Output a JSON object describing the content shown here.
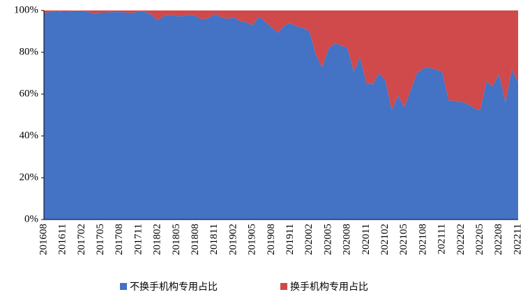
{
  "chart_data": {
    "type": "stacked_area",
    "categories": [
      "201608",
      null,
      null,
      "201611",
      null,
      null,
      "201702",
      null,
      null,
      "201705",
      null,
      null,
      "201708",
      null,
      null,
      "201711",
      null,
      null,
      "201802",
      null,
      null,
      "201805",
      null,
      null,
      "201808",
      null,
      null,
      "201811",
      null,
      null,
      "201902",
      null,
      null,
      "201905",
      null,
      null,
      "201908",
      null,
      null,
      "201911",
      null,
      null,
      "202002",
      null,
      null,
      "202005",
      null,
      null,
      "202008",
      null,
      null,
      "202011",
      null,
      null,
      "202102",
      null,
      null,
      "202105",
      null,
      null,
      "202108",
      null,
      null,
      "202111",
      null,
      null,
      "202202",
      null,
      null,
      "202205",
      null,
      null,
      "202208",
      null,
      null,
      "202211"
    ],
    "series": [
      {
        "name": "不换手机构专用占比",
        "color": "#4472c4",
        "values": [
          98.7,
          99.3,
          99.7,
          99.5,
          99.5,
          99.8,
          99.8,
          99.3,
          98.3,
          99,
          99,
          99.3,
          99.3,
          99,
          98.7,
          99.7,
          99.3,
          98,
          95.3,
          97.3,
          98,
          97.3,
          97.3,
          98,
          97.3,
          95.7,
          96.3,
          98.3,
          96.7,
          96,
          96.7,
          95,
          94.3,
          93,
          97,
          94.7,
          92,
          89.3,
          92.7,
          94,
          92.3,
          91.7,
          90,
          79,
          72.7,
          81.7,
          84.3,
          83.3,
          82,
          70.7,
          77.7,
          65.3,
          64.7,
          70,
          66.7,
          52.3,
          59.3,
          53.7,
          61.7,
          70,
          72.3,
          72.7,
          71.7,
          70.7,
          57,
          56.7,
          56.3,
          55.3,
          53.3,
          52.3,
          66,
          63.7,
          69.7,
          56,
          71.7,
          65.7
        ]
      },
      {
        "name": "换手机构专用占比",
        "color": "#d0494b",
        "values": [
          1.3,
          0.7,
          0.3,
          0.5,
          0.5,
          0.2,
          0.2,
          0.7,
          1.7,
          1,
          1,
          0.7,
          0.7,
          1,
          1.3,
          0.3,
          0.7,
          2,
          4.7,
          2.7,
          2,
          2.7,
          2.7,
          2,
          2.7,
          4.3,
          3.7,
          1.7,
          3.3,
          4,
          3.3,
          5,
          5.7,
          7,
          3,
          5.3,
          8,
          10.7,
          7.3,
          6,
          7.7,
          8.3,
          10,
          21,
          27.3,
          18.3,
          15.7,
          16.7,
          18,
          29.3,
          22.3,
          34.7,
          35.3,
          30,
          33.3,
          47.7,
          40.7,
          46.3,
          38.3,
          30,
          27.7,
          27.3,
          28.3,
          29.3,
          43,
          43.3,
          43.7,
          44.7,
          46.7,
          47.7,
          34,
          36.3,
          30.3,
          44,
          28.3,
          34.3
        ]
      }
    ],
    "ylim": [
      0,
      100
    ],
    "yticks": [
      {
        "value": 0,
        "label": "0%"
      },
      {
        "value": 20,
        "label": "20%"
      },
      {
        "value": 40,
        "label": "40%"
      },
      {
        "value": 60,
        "label": "60%"
      },
      {
        "value": 80,
        "label": "80%"
      },
      {
        "value": 100,
        "label": "100%"
      }
    ],
    "legend": "bottom"
  }
}
